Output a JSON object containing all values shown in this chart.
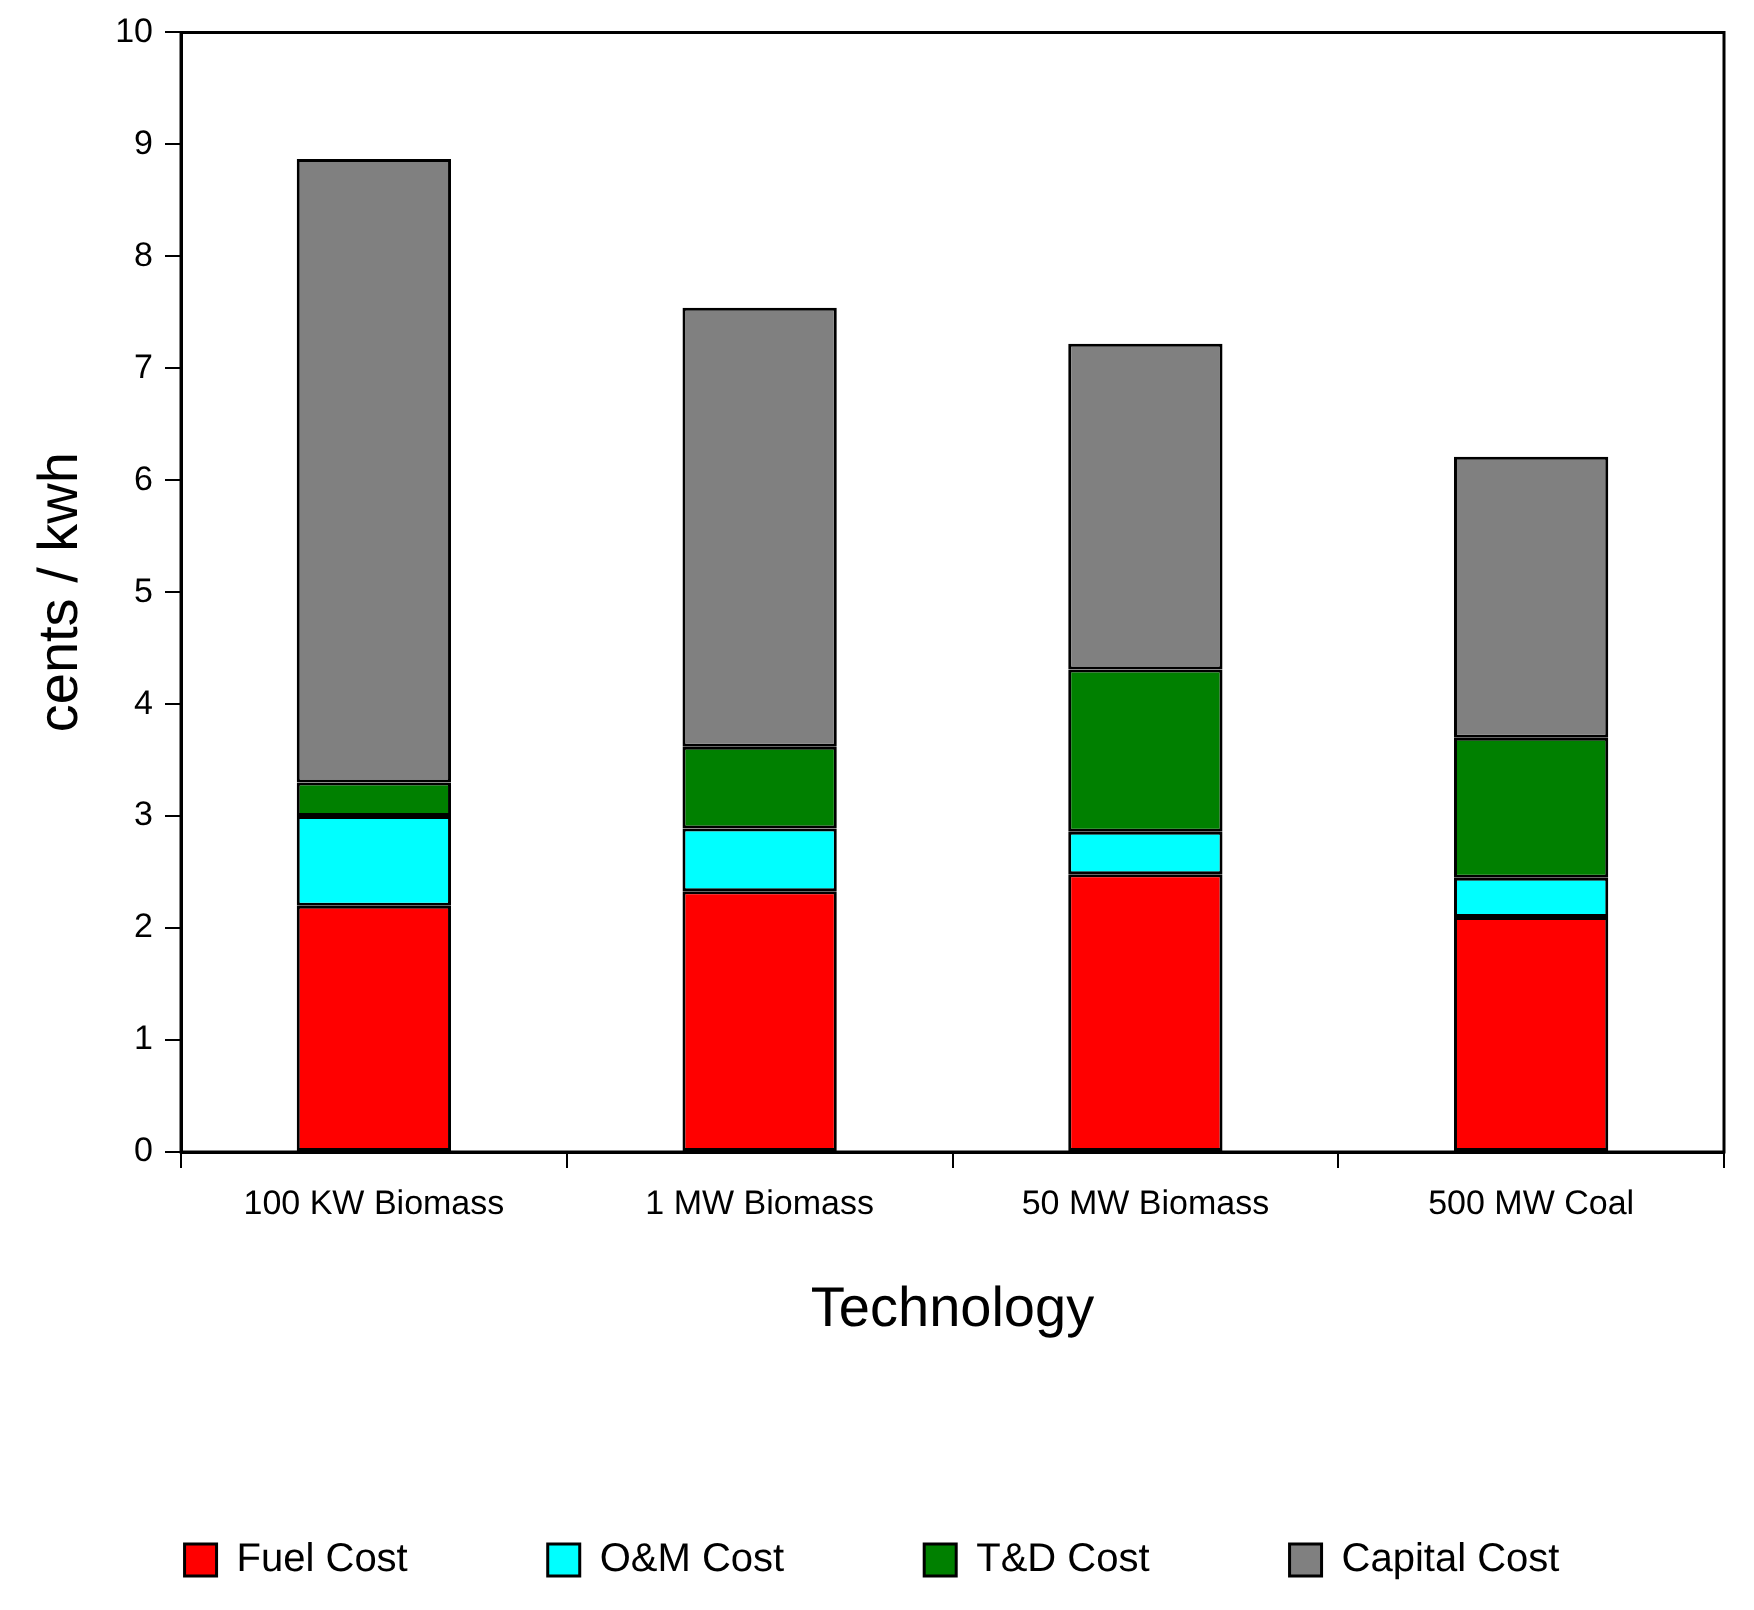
{
  "chart_data": {
    "type": "bar",
    "stacked": true,
    "xlabel": "Technology",
    "ylabel": "cents / kwh",
    "categories": [
      "100 KW Biomass",
      "1 MW Biomass",
      "50 MW Biomass",
      "500 MW Coal"
    ],
    "series": [
      {
        "name": "Fuel Cost",
        "color": "#ff0000",
        "values": [
          2.2,
          2.33,
          2.48,
          2.1
        ]
      },
      {
        "name": "O&M Cost",
        "color": "#00ffff",
        "values": [
          0.8,
          0.56,
          0.38,
          0.35
        ]
      },
      {
        "name": "T&D Cost",
        "color": "#008000",
        "values": [
          0.3,
          0.73,
          1.45,
          1.25
        ]
      },
      {
        "name": "Capital Cost",
        "color": "#808080",
        "values": [
          5.57,
          3.92,
          2.91,
          2.51
        ]
      }
    ],
    "ylim": [
      0,
      10
    ],
    "yticks": [
      0,
      1,
      2,
      3,
      4,
      5,
      6,
      7,
      8,
      9,
      10
    ],
    "grid": false,
    "legend": "bottom"
  }
}
